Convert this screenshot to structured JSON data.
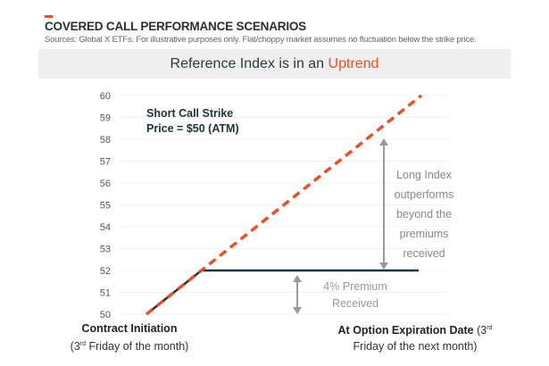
{
  "header": {
    "title": "COVERED CALL PERFORMANCE SCENARIOS",
    "sources": "Sources: Global X ETFs. For illustrative purposes only. Flat/choppy market assumes no fluctuation below the strike price.",
    "banner_prefix": "Reference Index is in an ",
    "banner_highlight": "Uptrend"
  },
  "colors": {
    "accent": "#e8502a",
    "flat": "#1f3238",
    "arrow": "#9a9a9a"
  },
  "chart_data": {
    "type": "line",
    "title": "Reference Index is in an Uptrend",
    "ylim": [
      50,
      60
    ],
    "yticks": [
      50,
      51,
      52,
      53,
      54,
      55,
      56,
      57,
      58,
      59,
      60
    ],
    "x_labels": {
      "start_bold": "Contract Initiation",
      "start_note_pre": "(3",
      "start_sup": "rd",
      "start_note_post": " Friday of the month)",
      "end_bold": "At Option Expiration Date",
      "end_note_pre": " (3",
      "end_sup": "rd",
      "end_note_post": "Friday of the next month)"
    },
    "series": [
      {
        "name": "Long Index",
        "style": "dashed",
        "x": [
          0,
          1
        ],
        "y": [
          50,
          60
        ]
      },
      {
        "name": "Covered Call",
        "style": "solid",
        "x": [
          0,
          0.2,
          0.99
        ],
        "y": [
          50,
          52,
          52
        ]
      }
    ],
    "annotations": {
      "strike_line1": "Short Call Strike",
      "strike_line2": "Price = $50 (ATM)",
      "long": [
        "Long Index",
        "outperforms",
        "beyond the",
        "premiums",
        "received"
      ],
      "premium": [
        "4% Premium",
        "Received"
      ]
    }
  }
}
